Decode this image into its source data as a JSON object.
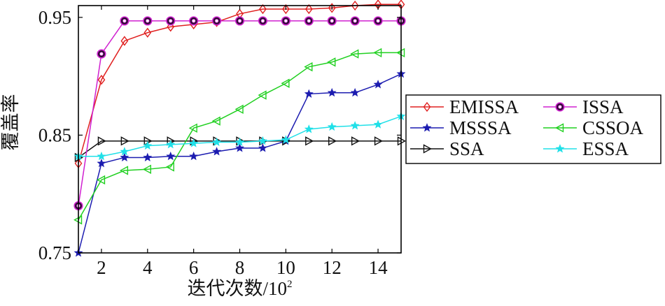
{
  "chart_data": {
    "type": "line",
    "xlabel": "迭代次数/10",
    "xlabel_sup": "2",
    "ylabel": "覆盖率",
    "xlim": [
      1,
      15
    ],
    "ylim": [
      0.75,
      0.96
    ],
    "x_ticks": [
      2,
      4,
      6,
      8,
      10,
      12,
      14
    ],
    "y_ticks": [
      0.75,
      0.85,
      0.95
    ],
    "y_tick_labels": [
      "0.75",
      "0.85",
      "0.95"
    ],
    "grid": false,
    "legend": {
      "placement": "right-outside",
      "columns": 2
    },
    "x": [
      1,
      2,
      3,
      4,
      5,
      6,
      7,
      8,
      9,
      10,
      11,
      12,
      13,
      14,
      15
    ],
    "series": [
      {
        "name": "EMISSA",
        "color": "#e02020",
        "marker": "diamond",
        "values": [
          0.826,
          0.897,
          0.93,
          0.937,
          0.942,
          0.944,
          0.946,
          0.953,
          0.957,
          0.957,
          0.957,
          0.958,
          0.96,
          0.961,
          0.961
        ]
      },
      {
        "name": "MSSSA",
        "color": "#1c1cb0",
        "marker": "star",
        "values": [
          0.75,
          0.826,
          0.831,
          0.831,
          0.832,
          0.832,
          0.836,
          0.839,
          0.839,
          0.845,
          0.885,
          0.886,
          0.886,
          0.893,
          0.902
        ]
      },
      {
        "name": "SSA",
        "color": "#111111",
        "marker": "triangle-right",
        "values": [
          0.831,
          0.845,
          0.845,
          0.845,
          0.845,
          0.845,
          0.845,
          0.845,
          0.845,
          0.845,
          0.845,
          0.845,
          0.845,
          0.845,
          0.845
        ]
      },
      {
        "name": "ISSA",
        "color": "#d020d0",
        "marker": "circle",
        "values": [
          0.79,
          0.919,
          0.947,
          0.947,
          0.947,
          0.947,
          0.947,
          0.947,
          0.947,
          0.947,
          0.947,
          0.947,
          0.947,
          0.947,
          0.947
        ]
      },
      {
        "name": "CSSOA",
        "color": "#20d020",
        "marker": "triangle-left",
        "values": [
          0.778,
          0.812,
          0.82,
          0.821,
          0.823,
          0.856,
          0.862,
          0.872,
          0.884,
          0.894,
          0.908,
          0.912,
          0.919,
          0.92,
          0.92
        ]
      },
      {
        "name": "ESSA",
        "color": "#20e0e8",
        "marker": "star",
        "values": [
          0.832,
          0.832,
          0.836,
          0.841,
          0.842,
          0.843,
          0.844,
          0.844,
          0.845,
          0.846,
          0.855,
          0.857,
          0.858,
          0.859,
          0.866
        ]
      }
    ]
  }
}
